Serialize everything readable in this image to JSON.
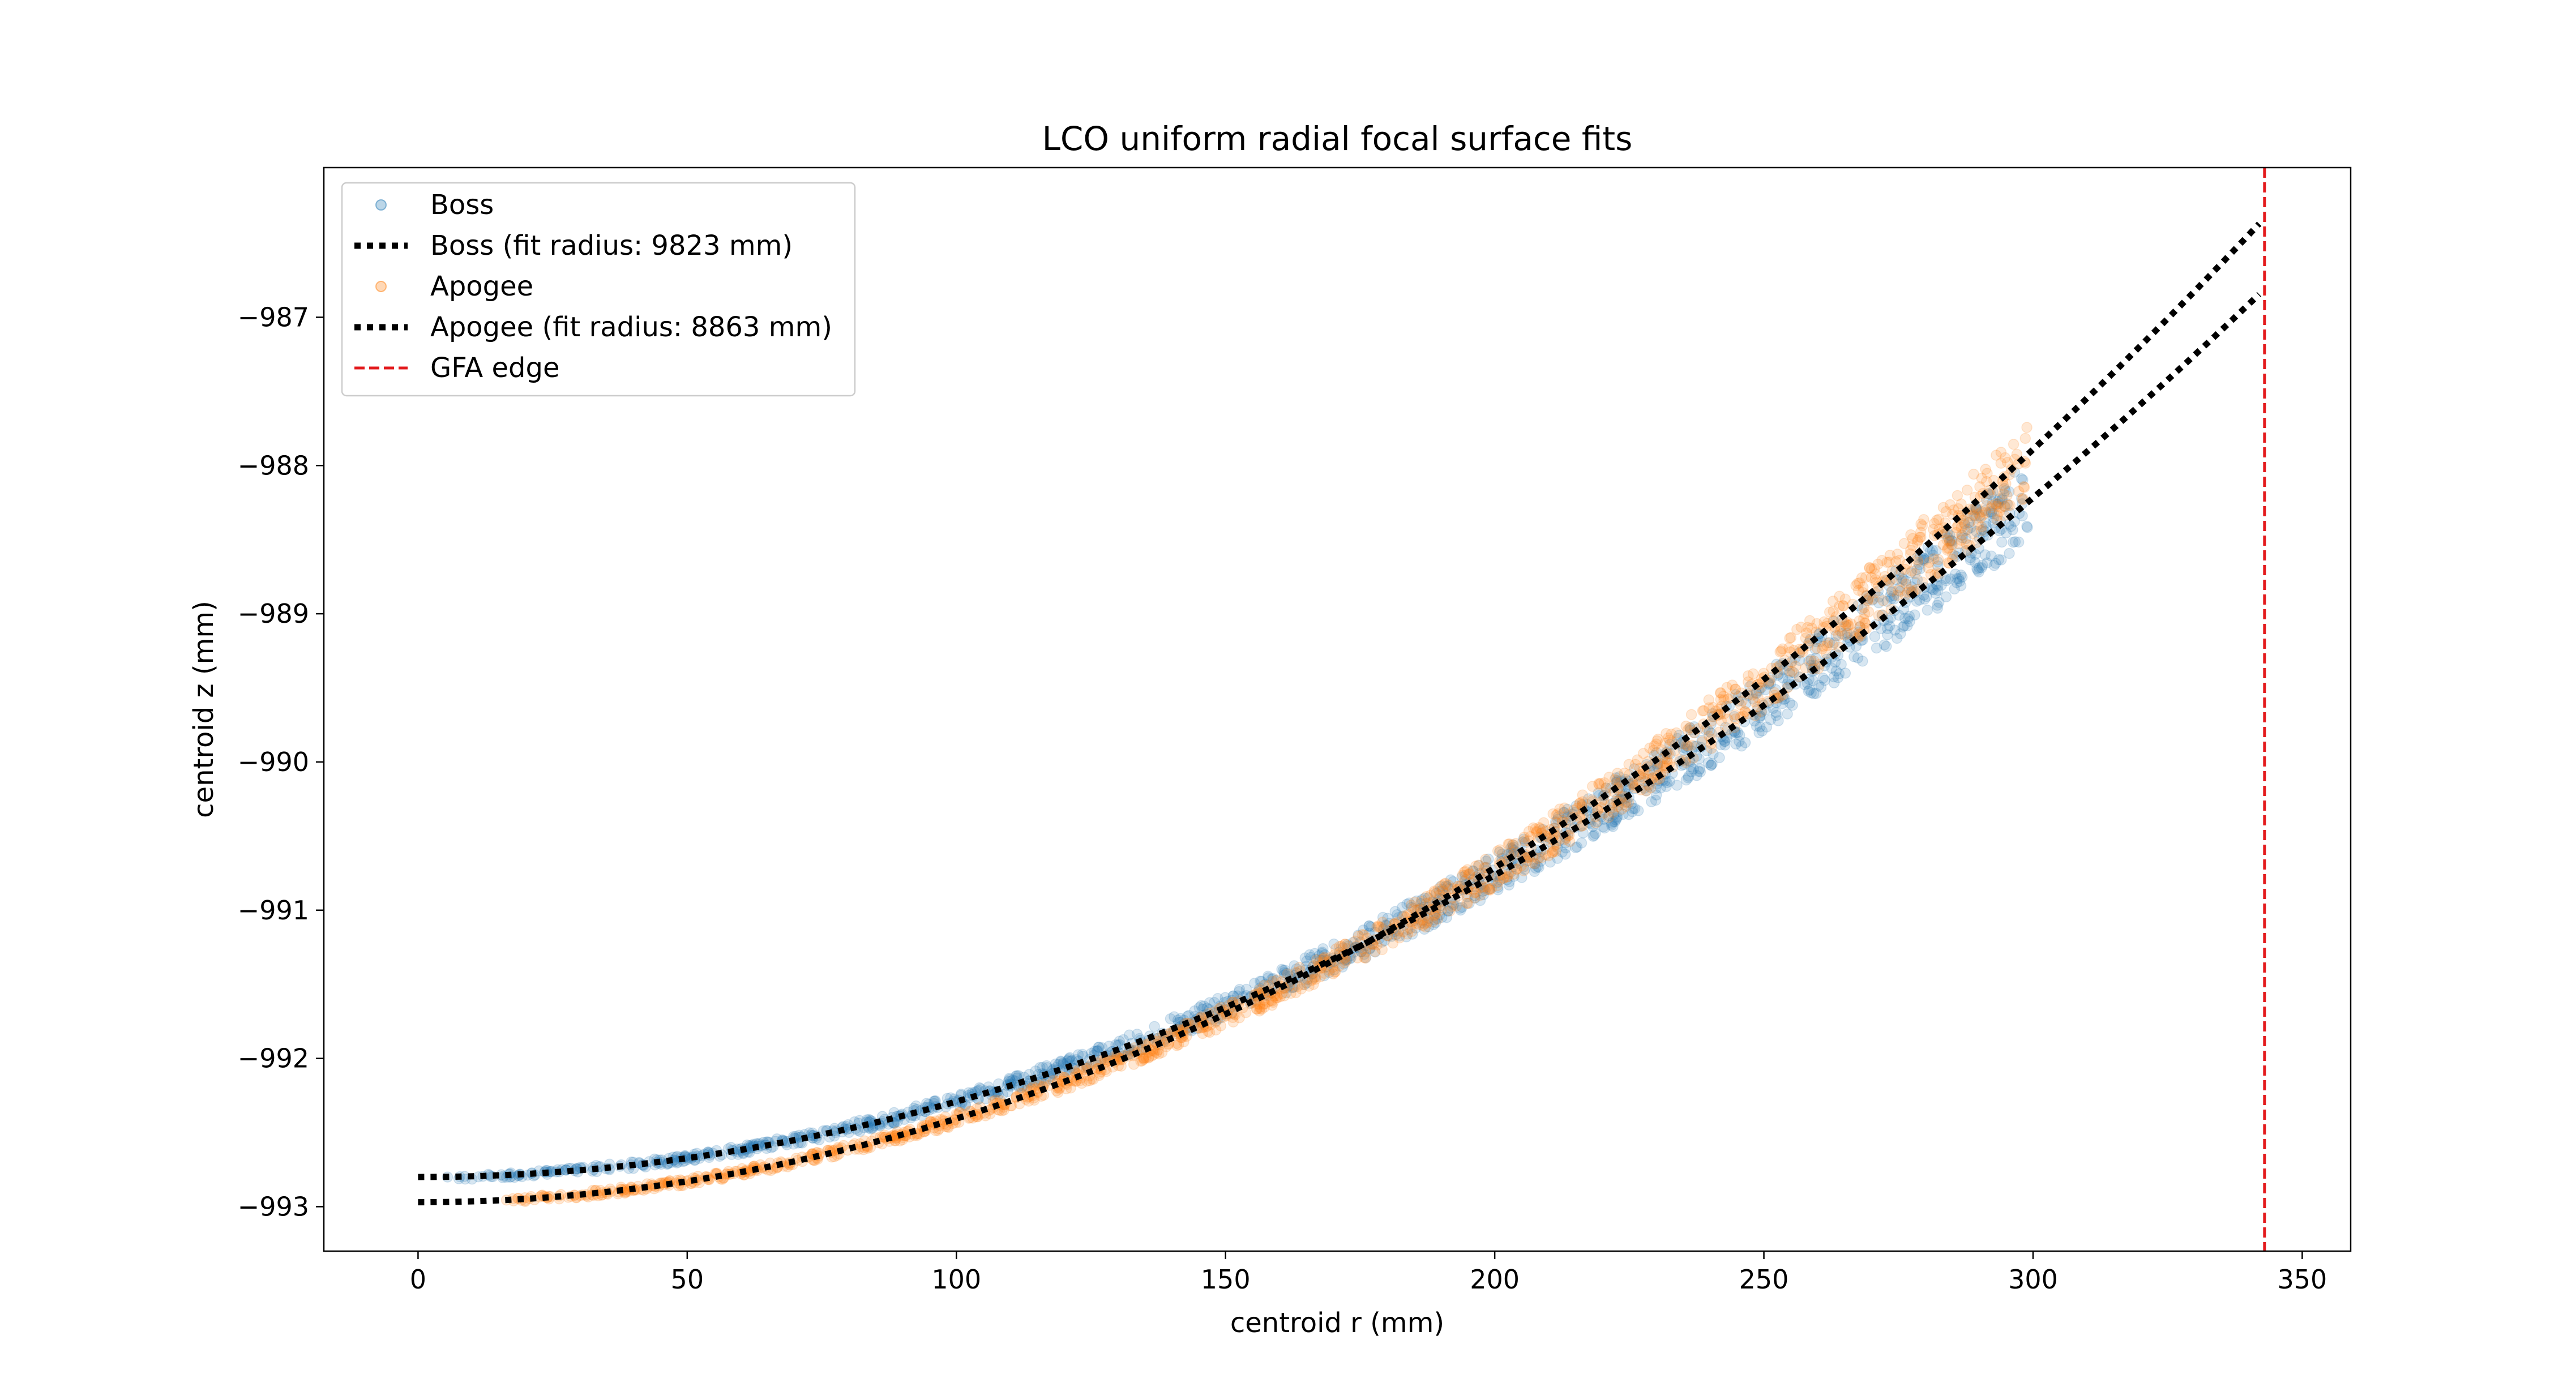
{
  "chart_data": {
    "type": "scatter",
    "title": "LCO uniform radial focal surface fits",
    "xlabel": "centroid r (mm)",
    "ylabel": "centroid z (mm)",
    "xlim": [
      -17.5,
      359
    ],
    "ylim": [
      -993.3,
      -985.99
    ],
    "xticks": [
      0,
      50,
      100,
      150,
      200,
      250,
      300,
      350
    ],
    "yticks": [
      -993,
      -992,
      -991,
      -990,
      -989,
      -988,
      -987
    ],
    "xtick_labels": [
      "0",
      "50",
      "100",
      "150",
      "200",
      "250",
      "300",
      "350"
    ],
    "ytick_labels": [
      "−993",
      "−992",
      "−991",
      "−990",
      "−989",
      "−988",
      "−987"
    ],
    "grid": false,
    "legend_position": "upper-left",
    "series": [
      {
        "name": "Boss",
        "kind": "points",
        "color": "#1f77b4",
        "alpha": 0.18,
        "r_range": [
          5,
          299
        ],
        "z_at_r0": -992.8,
        "fit_radius_mm": 9823,
        "band": {
          "upper_offset": [
            0.02,
            0.3
          ],
          "lower_offset": [
            -0.02,
            -0.25
          ]
        }
      },
      {
        "name": "Boss (fit radius: 9823 mm)",
        "kind": "fit-line",
        "color": "#000000",
        "style": "dotted",
        "x_range": [
          0,
          342
        ],
        "z_at_r0": -992.8,
        "radius_mm": 9823
      },
      {
        "name": "Apogee",
        "kind": "points",
        "color": "#ff7f0e",
        "alpha": 0.18,
        "r_range": [
          15,
          299
        ],
        "z_at_r0": -992.97,
        "fit_radius_mm": 8863,
        "band": {
          "upper_offset": [
            0.02,
            0.22
          ],
          "lower_offset": [
            -0.02,
            -0.3
          ]
        }
      },
      {
        "name": "Apogee (fit radius: 8863 mm)",
        "kind": "fit-line",
        "color": "#000000",
        "style": "dotted",
        "x_range": [
          0,
          342
        ],
        "z_at_r0": -992.97,
        "radius_mm": 8863
      },
      {
        "name": "GFA edge",
        "kind": "vline",
        "color": "#e31a1c",
        "style": "dashed",
        "x": 343
      }
    ]
  }
}
